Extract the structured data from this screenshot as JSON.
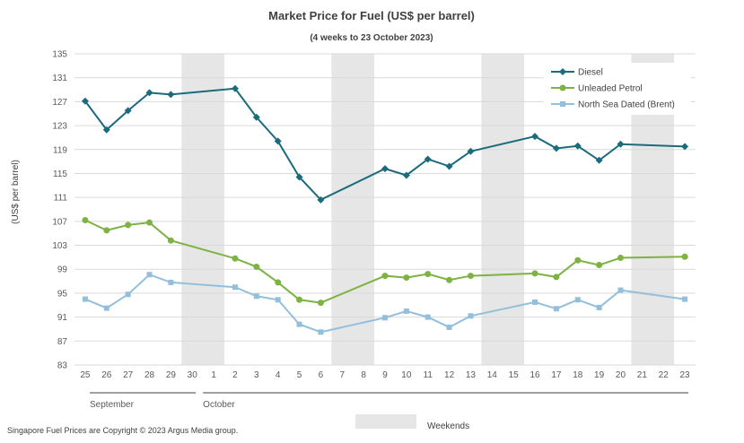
{
  "chart_data": {
    "type": "line",
    "title": "Market Price for Fuel (US$ per barrel)",
    "subtitle": "(4 weeks to 23 October 2023)",
    "ylabel": "(US$ per barrel)",
    "ylim": [
      83,
      135
    ],
    "yticks": [
      83,
      87,
      91,
      95,
      99,
      103,
      107,
      111,
      115,
      119,
      123,
      127,
      131,
      135
    ],
    "grid": true,
    "categories": [
      "25",
      "26",
      "27",
      "28",
      "29",
      "30",
      "1",
      "2",
      "3",
      "4",
      "5",
      "6",
      "7",
      "8",
      "9",
      "10",
      "11",
      "12",
      "13",
      "14",
      "15",
      "16",
      "17",
      "18",
      "19",
      "20",
      "21",
      "22",
      "23"
    ],
    "month_labels": [
      {
        "label": "September",
        "start_index": 0,
        "end_index": 5
      },
      {
        "label": "October",
        "start_index": 6,
        "end_index": 28
      }
    ],
    "weekends": [
      [
        5,
        6
      ],
      [
        12,
        13
      ],
      [
        19,
        20
      ],
      [
        26,
        27
      ]
    ],
    "weekend_legend_label": "Weekends",
    "series": [
      {
        "name": "Diesel",
        "color": "#1b6b7c",
        "marker": "diamond",
        "values": [
          127.1,
          122.3,
          125.5,
          128.5,
          128.2,
          null,
          null,
          129.2,
          124.4,
          120.4,
          114.4,
          110.6,
          null,
          null,
          115.8,
          114.7,
          117.4,
          116.2,
          118.7,
          null,
          null,
          121.2,
          119.2,
          119.6,
          117.2,
          119.9,
          null,
          null,
          119.5
        ]
      },
      {
        "name": "Unleaded Petrol",
        "color": "#7cb342",
        "marker": "circle",
        "values": [
          107.2,
          105.5,
          106.4,
          106.8,
          103.8,
          null,
          null,
          100.8,
          99.4,
          96.8,
          93.9,
          93.4,
          null,
          null,
          97.9,
          97.6,
          98.2,
          97.2,
          97.9,
          null,
          null,
          98.3,
          97.7,
          100.5,
          99.7,
          100.9,
          null,
          null,
          101.1
        ]
      },
      {
        "name": "North Sea Dated (Brent)",
        "color": "#93bfdc",
        "marker": "square",
        "values": [
          94.0,
          92.5,
          94.8,
          98.1,
          96.8,
          null,
          null,
          96.0,
          94.5,
          93.9,
          89.8,
          88.5,
          null,
          null,
          90.9,
          92.0,
          91.0,
          89.3,
          91.2,
          null,
          null,
          93.5,
          92.4,
          93.9,
          92.6,
          95.5,
          null,
          null,
          94.0
        ]
      }
    ]
  },
  "footer": {
    "copyright": "Singapore Fuel Prices are Copyright © 2023 Argus Media group."
  }
}
